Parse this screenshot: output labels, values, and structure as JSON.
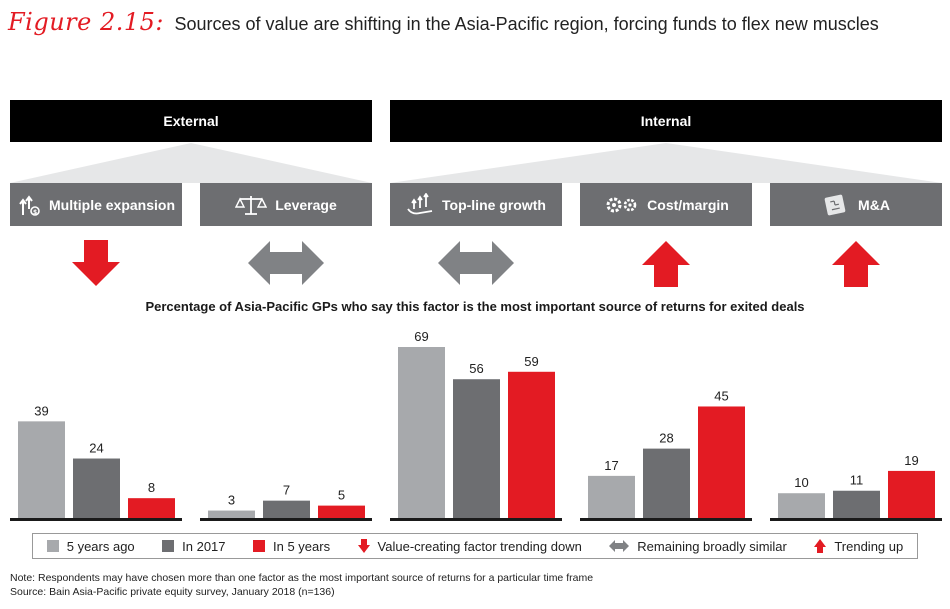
{
  "figure": {
    "label": "Figure 2.15:",
    "title": "Sources of value are shifting in the Asia-Pacific region, forcing funds to flex new muscles"
  },
  "bands": {
    "external": "External",
    "internal": "Internal"
  },
  "factors": [
    {
      "label": "Multiple expansion",
      "icon": "multiple-expansion-icon",
      "trend": "down"
    },
    {
      "label": "Leverage",
      "icon": "scales-icon",
      "trend": "similar"
    },
    {
      "label": "Top-line growth",
      "icon": "top-line-growth-icon",
      "trend": "similar"
    },
    {
      "label": "Cost/margin",
      "icon": "gears-icon",
      "trend": "up"
    },
    {
      "label": "M&A",
      "icon": "puzzle-icon",
      "trend": "up"
    }
  ],
  "colors": {
    "five_years_ago": "#a7a9ac",
    "in_2017": "#6d6e71",
    "in_5_years": "#e31b23",
    "band": "#000000",
    "factor_box": "#6d6e71",
    "neutral_arrow": "#808285"
  },
  "chart_data": {
    "type": "bar",
    "title": "Percentage of Asia-Pacific GPs who say this factor is the most important source of returns for exited deals",
    "categories": [
      "Multiple expansion",
      "Leverage",
      "Top-line growth",
      "Cost/margin",
      "M&A"
    ],
    "series": [
      {
        "name": "5 years ago",
        "values": [
          39,
          3,
          69,
          17,
          10
        ]
      },
      {
        "name": "In 2017",
        "values": [
          24,
          7,
          56,
          28,
          11
        ]
      },
      {
        "name": "In 5 years",
        "values": [
          8,
          5,
          59,
          45,
          19
        ]
      }
    ],
    "ylim": [
      0,
      69
    ],
    "grid": false,
    "legend": "bottom"
  },
  "legend": {
    "five_years_ago": "5 years ago",
    "in_2017": "In 2017",
    "in_5_years": "In 5 years",
    "trend_down": "Value-creating factor trending down",
    "similar": "Remaining broadly similar",
    "trend_up": "Trending up"
  },
  "notes": {
    "note": "Note: Respondents may have chosen more than one factor as the most important source of returns for a particular time frame",
    "source": "Source: Bain Asia-Pacific private equity survey, January 2018 (n=136)"
  }
}
